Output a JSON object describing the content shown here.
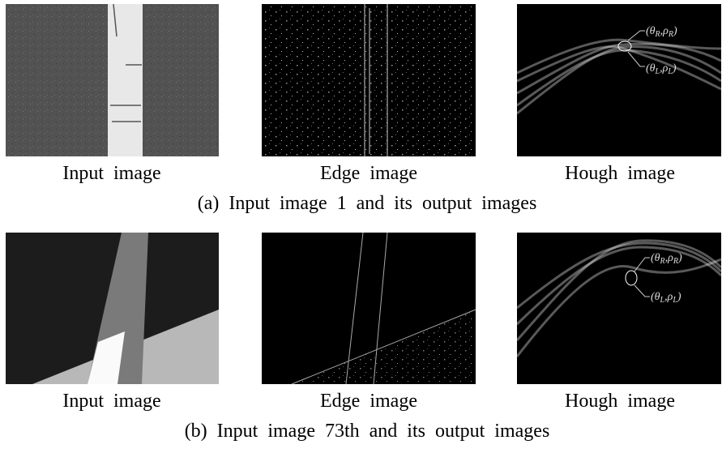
{
  "figure": {
    "rows": [
      {
        "panels": [
          {
            "label": "Input image"
          },
          {
            "label": "Edge image"
          },
          {
            "label": "Hough image",
            "annotations": [
              {
                "parts": [
                  "(θ",
                  "R",
                  ",ρ",
                  "R",
                  ")"
                ]
              },
              {
                "parts": [
                  "(θ",
                  "L",
                  ",ρ",
                  "L",
                  ")"
                ]
              }
            ]
          }
        ],
        "caption": "(a) Input image 1 and its output images"
      },
      {
        "panels": [
          {
            "label": "Input image"
          },
          {
            "label": "Edge image"
          },
          {
            "label": "Hough image",
            "annotations": [
              {
                "parts": [
                  "(θ",
                  "R",
                  ",ρ",
                  "R",
                  ")"
                ]
              },
              {
                "parts": [
                  "(θ",
                  "L",
                  ",ρ",
                  "L",
                  ")"
                ]
              }
            ]
          }
        ],
        "caption": "(b) Input image 73th and its output images"
      }
    ]
  }
}
